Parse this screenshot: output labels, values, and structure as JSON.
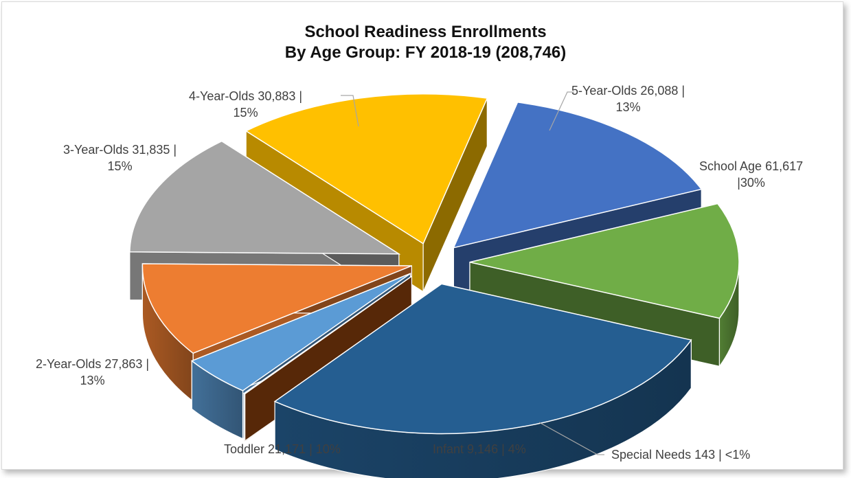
{
  "chart_data": {
    "type": "pie",
    "title": "School Readiness Enrollments",
    "subtitle": "By Age Group: FY 2018-19 (208,746)",
    "total": 208746,
    "slices": [
      {
        "name": "School Age",
        "value": 61617,
        "percent": "30%",
        "label_line1": "School Age  61,617",
        "label_line2": "|30%",
        "color": "#255E91"
      },
      {
        "name": "Special Needs",
        "value": 143,
        "percent": "<1%",
        "label_line1": "Special Needs  143 | <1%",
        "label_line2": "",
        "color": "#9E480E"
      },
      {
        "name": "Infant",
        "value": 9146,
        "percent": "4%",
        "label_line1": "Infant  9,146 | 4%",
        "label_line2": "",
        "color": "#5B9BD5"
      },
      {
        "name": "Toddler",
        "value": 21171,
        "percent": "10%",
        "label_line1": "Toddler  21,171 | 10%",
        "label_line2": "",
        "color": "#ED7D31"
      },
      {
        "name": "2-Year-Olds",
        "value": 27863,
        "percent": "13%",
        "label_line1": "2-Year-Olds  27,863 |",
        "label_line2": "13%",
        "color": "#A5A5A5"
      },
      {
        "name": "3-Year-Olds",
        "value": 31835,
        "percent": "15%",
        "label_line1": "3-Year-Olds  31,835 |",
        "label_line2": "15%",
        "color": "#FFC000"
      },
      {
        "name": "4-Year-Olds",
        "value": 30883,
        "percent": "15%",
        "label_line1": "4-Year-Olds  30,883 |",
        "label_line2": "15%",
        "color": "#4472C4"
      },
      {
        "name": "5-Year-Olds",
        "value": 26088,
        "percent": "13%",
        "label_line1": "5-Year-Olds  26,088 |",
        "label_line2": "13%",
        "color": "#70AD47"
      }
    ],
    "legend": "none",
    "style": "3d-exploded"
  }
}
